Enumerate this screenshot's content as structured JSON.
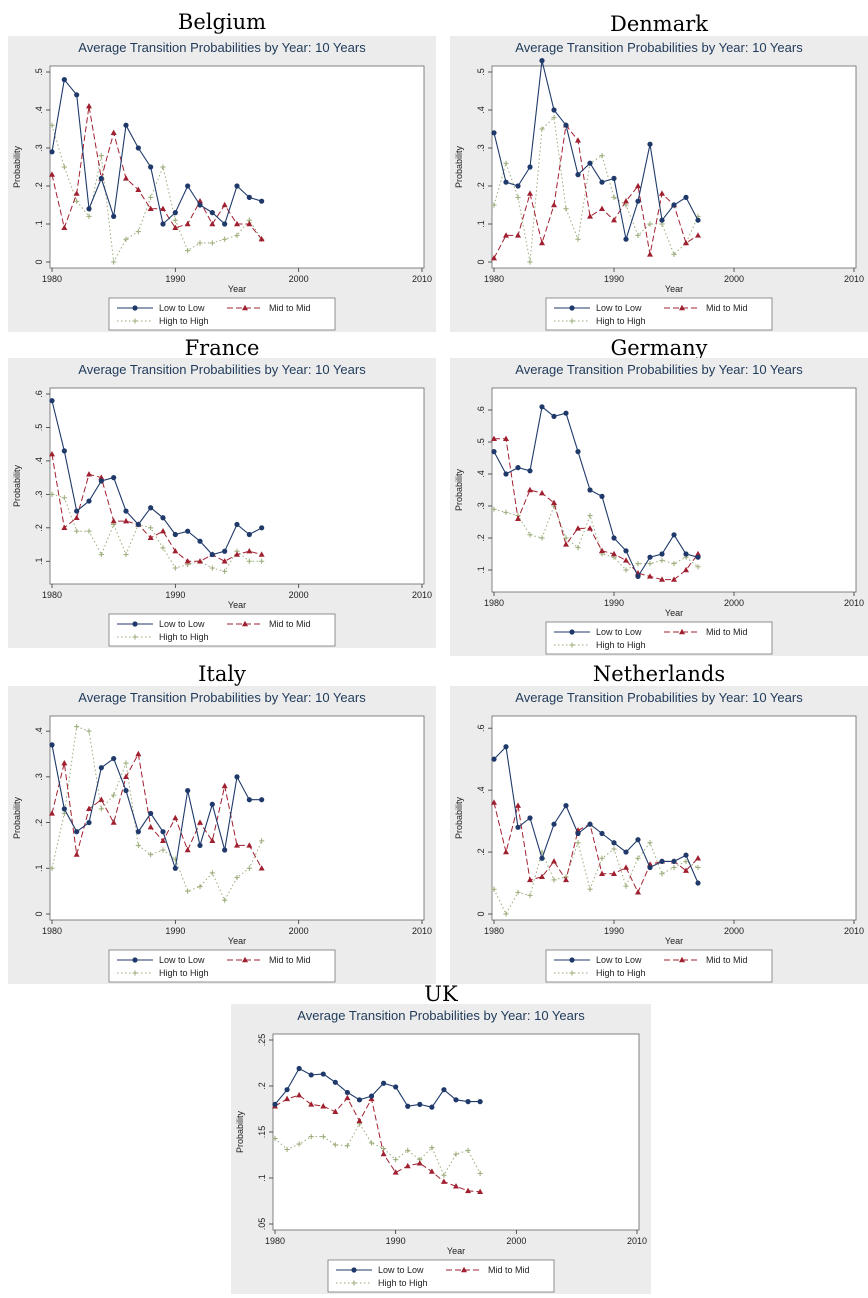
{
  "figure": {
    "panel_title": "Average Transition Probabilities by Year: 10 Years",
    "xlabel": "Year",
    "ylabel": "Probability",
    "legend": {
      "low": "Low to Low",
      "mid": "Mid to Mid",
      "high": "High to High"
    },
    "colors": {
      "low": "#1f3a6a",
      "mid": "#a02030",
      "high": "#9aab78"
    }
  },
  "chart_data": [
    {
      "type": "line",
      "country": "Belgium",
      "x": [
        1980,
        1981,
        1982,
        1983,
        1984,
        1985,
        1986,
        1987,
        1988,
        1989,
        1990,
        1991,
        1992,
        1993,
        1994,
        1995,
        1996,
        1997
      ],
      "xlim": [
        1980,
        2010
      ],
      "xticks": [
        1980,
        1990,
        2000,
        2010
      ],
      "ylim": [
        0,
        0.5
      ],
      "yticks": [
        0,
        0.1,
        0.2,
        0.3,
        0.4,
        0.5
      ],
      "ytick_labels": [
        "0",
        ".1",
        ".2",
        ".3",
        ".4",
        ".5"
      ],
      "series": [
        {
          "key": "low",
          "name": "Low to Low",
          "values": [
            0.29,
            0.48,
            0.44,
            0.14,
            0.22,
            0.12,
            0.36,
            0.3,
            0.25,
            0.1,
            0.13,
            0.2,
            0.15,
            0.13,
            0.1,
            0.2,
            0.17,
            0.16
          ]
        },
        {
          "key": "mid",
          "name": "Mid to Mid",
          "values": [
            0.23,
            0.09,
            0.18,
            0.41,
            0.22,
            0.34,
            0.22,
            0.19,
            0.14,
            0.14,
            0.09,
            0.1,
            0.16,
            0.1,
            0.15,
            0.1,
            0.1,
            0.06
          ]
        },
        {
          "key": "high",
          "name": "High to High",
          "values": [
            0.36,
            0.25,
            0.16,
            0.12,
            0.28,
            0.0,
            0.06,
            0.08,
            0.17,
            0.25,
            0.11,
            0.03,
            0.05,
            0.05,
            0.06,
            0.07,
            0.11,
            0.06
          ]
        }
      ]
    },
    {
      "type": "line",
      "country": "Denmark",
      "x": [
        1980,
        1981,
        1982,
        1983,
        1984,
        1985,
        1986,
        1987,
        1988,
        1989,
        1990,
        1991,
        1992,
        1993,
        1994,
        1995,
        1996,
        1997
      ],
      "xlim": [
        1980,
        2010
      ],
      "xticks": [
        1980,
        1990,
        2000,
        2010
      ],
      "ylim": [
        0,
        0.5
      ],
      "yticks": [
        0,
        0.1,
        0.2,
        0.3,
        0.4,
        0.5
      ],
      "ytick_labels": [
        "0",
        ".1",
        ".2",
        ".3",
        ".4",
        ".5"
      ],
      "series": [
        {
          "key": "low",
          "name": "Low to Low",
          "values": [
            0.34,
            0.21,
            0.2,
            0.25,
            0.53,
            0.4,
            0.36,
            0.23,
            0.26,
            0.21,
            0.22,
            0.06,
            0.16,
            0.31,
            0.11,
            0.15,
            0.17,
            0.11
          ]
        },
        {
          "key": "mid",
          "name": "Mid to Mid",
          "values": [
            0.01,
            0.07,
            0.07,
            0.18,
            0.05,
            0.15,
            0.36,
            0.32,
            0.12,
            0.14,
            0.11,
            0.16,
            0.2,
            0.02,
            0.18,
            0.15,
            0.05,
            0.07
          ]
        },
        {
          "key": "high",
          "name": "High to High",
          "values": [
            0.15,
            0.26,
            0.17,
            0.0,
            0.35,
            0.38,
            0.14,
            0.06,
            0.26,
            0.28,
            0.17,
            0.15,
            0.07,
            0.1,
            0.1,
            0.02,
            0.05,
            0.12
          ]
        }
      ]
    },
    {
      "type": "line",
      "country": "France",
      "x": [
        1980,
        1981,
        1982,
        1983,
        1984,
        1985,
        1986,
        1987,
        1988,
        1989,
        1990,
        1991,
        1992,
        1993,
        1994,
        1995,
        1996,
        1997
      ],
      "xlim": [
        1980,
        2010
      ],
      "xticks": [
        1980,
        1990,
        2000,
        2010
      ],
      "ylim": [
        0.05,
        0.6
      ],
      "yticks": [
        0.1,
        0.2,
        0.3,
        0.4,
        0.5,
        0.6
      ],
      "ytick_labels": [
        ".1",
        ".2",
        ".3",
        ".4",
        ".5",
        ".6"
      ],
      "series": [
        {
          "key": "low",
          "name": "Low to Low",
          "values": [
            0.58,
            0.43,
            0.25,
            0.28,
            0.34,
            0.35,
            0.25,
            0.21,
            0.26,
            0.23,
            0.18,
            0.19,
            0.16,
            0.12,
            0.13,
            0.21,
            0.18,
            0.2
          ]
        },
        {
          "key": "mid",
          "name": "Mid to Mid",
          "values": [
            0.42,
            0.2,
            0.23,
            0.36,
            0.35,
            0.22,
            0.22,
            0.21,
            0.17,
            0.19,
            0.13,
            0.1,
            0.1,
            0.12,
            0.1,
            0.12,
            0.13,
            0.12
          ]
        },
        {
          "key": "high",
          "name": "High to High",
          "values": [
            0.3,
            0.29,
            0.19,
            0.19,
            0.12,
            0.21,
            0.12,
            0.21,
            0.2,
            0.14,
            0.08,
            0.09,
            0.1,
            0.08,
            0.07,
            0.13,
            0.1,
            0.1
          ]
        }
      ]
    },
    {
      "type": "line",
      "country": "Germany",
      "x": [
        1980,
        1981,
        1982,
        1983,
        1984,
        1985,
        1986,
        1987,
        1988,
        1989,
        1990,
        1991,
        1992,
        1993,
        1994,
        1995,
        1996,
        1997
      ],
      "xlim": [
        1980,
        2010
      ],
      "xticks": [
        1980,
        1990,
        2000,
        2010
      ],
      "ylim": [
        0.05,
        0.65
      ],
      "yticks": [
        0.1,
        0.2,
        0.3,
        0.4,
        0.5,
        0.6
      ],
      "ytick_labels": [
        ".1",
        ".2",
        ".3",
        ".4",
        ".5",
        ".6"
      ],
      "series": [
        {
          "key": "low",
          "name": "Low to Low",
          "values": [
            0.47,
            0.4,
            0.42,
            0.41,
            0.61,
            0.58,
            0.59,
            0.47,
            0.35,
            0.33,
            0.2,
            0.16,
            0.08,
            0.14,
            0.15,
            0.21,
            0.15,
            0.14
          ]
        },
        {
          "key": "mid",
          "name": "Mid to Mid",
          "values": [
            0.51,
            0.51,
            0.26,
            0.35,
            0.34,
            0.31,
            0.18,
            0.23,
            0.23,
            0.16,
            0.15,
            0.13,
            0.09,
            0.08,
            0.07,
            0.07,
            0.1,
            0.15
          ]
        },
        {
          "key": "high",
          "name": "High to High",
          "values": [
            0.29,
            0.28,
            0.27,
            0.21,
            0.2,
            0.3,
            0.2,
            0.17,
            0.27,
            0.15,
            0.14,
            0.1,
            0.12,
            0.12,
            0.13,
            0.12,
            0.14,
            0.11
          ]
        }
      ]
    },
    {
      "type": "line",
      "country": "Italy",
      "x": [
        1980,
        1981,
        1982,
        1983,
        1984,
        1985,
        1986,
        1987,
        1988,
        1989,
        1990,
        1991,
        1992,
        1993,
        1994,
        1995,
        1996,
        1997
      ],
      "xlim": [
        1980,
        2010
      ],
      "xticks": [
        1980,
        1990,
        2000,
        2010
      ],
      "ylim": [
        0,
        0.42
      ],
      "yticks": [
        0,
        0.1,
        0.2,
        0.3,
        0.4
      ],
      "ytick_labels": [
        "0",
        ".1",
        ".2",
        ".3",
        ".4"
      ],
      "series": [
        {
          "key": "low",
          "name": "Low to Low",
          "values": [
            0.37,
            0.23,
            0.18,
            0.2,
            0.32,
            0.34,
            0.27,
            0.18,
            0.22,
            0.18,
            0.1,
            0.27,
            0.15,
            0.24,
            0.14,
            0.3,
            0.25,
            0.25
          ]
        },
        {
          "key": "mid",
          "name": "Mid to Mid",
          "values": [
            0.22,
            0.33,
            0.13,
            0.23,
            0.25,
            0.2,
            0.3,
            0.35,
            0.19,
            0.16,
            0.21,
            0.14,
            0.2,
            0.16,
            0.28,
            0.15,
            0.15,
            0.1
          ]
        },
        {
          "key": "high",
          "name": "High to High",
          "values": [
            0.1,
            0.22,
            0.41,
            0.4,
            0.23,
            0.26,
            0.33,
            0.15,
            0.13,
            0.14,
            0.12,
            0.05,
            0.06,
            0.09,
            0.03,
            0.08,
            0.1,
            0.16
          ]
        }
      ]
    },
    {
      "type": "line",
      "country": "Netherlands",
      "x": [
        1980,
        1981,
        1982,
        1983,
        1984,
        1985,
        1986,
        1987,
        1988,
        1989,
        1990,
        1991,
        1992,
        1993,
        1994,
        1995,
        1996,
        1997
      ],
      "xlim": [
        1980,
        2010
      ],
      "xticks": [
        1980,
        1990,
        2000,
        2010
      ],
      "ylim": [
        0,
        0.62
      ],
      "yticks": [
        0,
        0.2,
        0.4,
        0.6
      ],
      "ytick_labels": [
        "0",
        ".2",
        ".4",
        ".6"
      ],
      "series": [
        {
          "key": "low",
          "name": "Low to Low",
          "values": [
            0.5,
            0.54,
            0.28,
            0.31,
            0.18,
            0.29,
            0.35,
            0.26,
            0.29,
            0.26,
            0.23,
            0.2,
            0.24,
            0.15,
            0.17,
            0.17,
            0.19,
            0.1
          ]
        },
        {
          "key": "mid",
          "name": "Mid to Mid",
          "values": [
            0.36,
            0.2,
            0.35,
            0.11,
            0.12,
            0.17,
            0.11,
            0.27,
            0.29,
            0.13,
            0.13,
            0.15,
            0.07,
            0.16,
            0.17,
            0.17,
            0.14,
            0.18
          ]
        },
        {
          "key": "high",
          "name": "High to High",
          "values": [
            0.08,
            0.0,
            0.07,
            0.06,
            0.2,
            0.11,
            0.12,
            0.23,
            0.08,
            0.18,
            0.21,
            0.09,
            0.18,
            0.23,
            0.13,
            0.15,
            0.17,
            0.15
          ]
        }
      ]
    },
    {
      "type": "line",
      "country": "UK",
      "x": [
        1980,
        1981,
        1982,
        1983,
        1984,
        1985,
        1986,
        1987,
        1988,
        1989,
        1990,
        1991,
        1992,
        1993,
        1994,
        1995,
        1996,
        1997
      ],
      "xlim": [
        1980,
        2010
      ],
      "xticks": [
        1980,
        1990,
        2000,
        2010
      ],
      "ylim": [
        0.05,
        0.25
      ],
      "yticks": [
        0.05,
        0.1,
        0.15,
        0.2,
        0.25
      ],
      "ytick_labels": [
        ".05",
        ".1",
        ".15",
        ".2",
        ".25"
      ],
      "series": [
        {
          "key": "low",
          "name": "Low to Low",
          "values": [
            0.18,
            0.196,
            0.219,
            0.212,
            0.213,
            0.204,
            0.193,
            0.185,
            0.189,
            0.203,
            0.199,
            0.178,
            0.18,
            0.177,
            0.196,
            0.185,
            0.183,
            0.183
          ]
        },
        {
          "key": "mid",
          "name": "Mid to Mid",
          "values": [
            0.178,
            0.186,
            0.19,
            0.18,
            0.178,
            0.172,
            0.187,
            0.162,
            0.186,
            0.126,
            0.106,
            0.113,
            0.116,
            0.107,
            0.096,
            0.091,
            0.086,
            0.085
          ]
        },
        {
          "key": "high",
          "name": "High to High",
          "values": [
            0.143,
            0.131,
            0.137,
            0.145,
            0.145,
            0.136,
            0.135,
            0.159,
            0.138,
            0.132,
            0.12,
            0.13,
            0.12,
            0.133,
            0.103,
            0.126,
            0.13,
            0.105
          ]
        }
      ]
    }
  ]
}
